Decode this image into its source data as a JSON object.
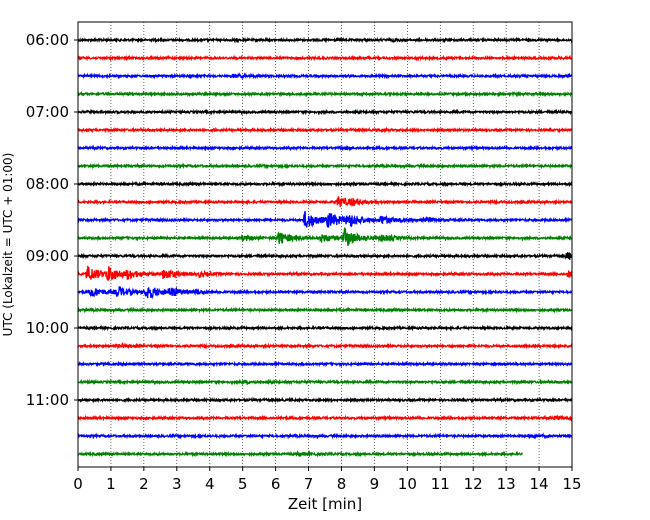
{
  "chart_data": {
    "type": "line",
    "title": "",
    "xlabel": "Zeit  [min]",
    "ylabel": "UTC (Lokalzeit = UTC + 01:00)",
    "xlim": [
      0,
      15
    ],
    "x_ticks": [
      "0",
      "1",
      "2",
      "3",
      "4",
      "5",
      "6",
      "7",
      "8",
      "9",
      "10",
      "11",
      "12",
      "13",
      "14",
      "15"
    ],
    "y_ticks": [
      "06:00",
      "07:00",
      "08:00",
      "09:00",
      "10:00",
      "11:00"
    ],
    "grid": "vertical dotted",
    "colors": [
      "#000000",
      "#ff0000",
      "#0000ff",
      "#008000"
    ],
    "trace_interval_min": 15,
    "traces": [
      {
        "start": "06:00",
        "color": "#000000",
        "events": [
          {
            "t": 9.6,
            "amp": 1.0
          }
        ]
      },
      {
        "start": "06:15",
        "color": "#ff0000",
        "events": [
          {
            "t": 14.8,
            "amp": 1.0
          }
        ]
      },
      {
        "start": "06:30",
        "color": "#0000ff",
        "events": [
          {
            "t": 4.7,
            "amp": 1.3
          }
        ]
      },
      {
        "start": "06:45",
        "color": "#008000",
        "events": []
      },
      {
        "start": "07:00",
        "color": "#000000",
        "events": []
      },
      {
        "start": "07:15",
        "color": "#ff0000",
        "events": [
          {
            "t": 9.1,
            "amp": 0.6
          }
        ]
      },
      {
        "start": "07:30",
        "color": "#0000ff",
        "events": [
          {
            "t": 8.0,
            "amp": 0.6
          }
        ]
      },
      {
        "start": "07:45",
        "color": "#008000",
        "events": []
      },
      {
        "start": "08:00",
        "color": "#000000",
        "events": []
      },
      {
        "start": "08:15",
        "color": "#ff0000",
        "events": [
          {
            "t": 7.9,
            "amp": 5.0
          },
          {
            "t": 8.3,
            "amp": 2.2
          }
        ]
      },
      {
        "start": "08:30",
        "color": "#0000ff",
        "events": [
          {
            "t": 6.9,
            "amp": 9.0
          },
          {
            "t": 7.6,
            "amp": 7.0
          },
          {
            "t": 8.2,
            "amp": 6.0
          },
          {
            "t": 9.2,
            "amp": 4.0
          },
          {
            "t": 10.5,
            "amp": 2.0
          }
        ]
      },
      {
        "start": "08:45",
        "color": "#008000",
        "events": [
          {
            "t": 5.0,
            "amp": 2.0
          },
          {
            "t": 6.1,
            "amp": 6.0
          },
          {
            "t": 7.4,
            "amp": 4.0
          },
          {
            "t": 8.1,
            "amp": 9.0
          },
          {
            "t": 9.2,
            "amp": 3.0
          }
        ]
      },
      {
        "start": "09:00",
        "color": "#000000",
        "events": [
          {
            "t": 14.85,
            "amp": 3.0
          }
        ]
      },
      {
        "start": "09:15",
        "color": "#ff0000",
        "events": [
          {
            "t": 0.3,
            "amp": 7.5
          },
          {
            "t": 0.9,
            "amp": 7.0
          },
          {
            "t": 1.5,
            "amp": 3.5
          },
          {
            "t": 2.6,
            "amp": 5.0
          },
          {
            "t": 3.7,
            "amp": 2.0
          },
          {
            "t": 14.9,
            "amp": 3.0
          }
        ]
      },
      {
        "start": "09:30",
        "color": "#0000ff",
        "events": [
          {
            "t": 0.4,
            "amp": 5.0
          },
          {
            "t": 1.2,
            "amp": 5.0
          },
          {
            "t": 2.1,
            "amp": 6.5
          },
          {
            "t": 2.8,
            "amp": 4.0
          },
          {
            "t": 3.6,
            "amp": 1.5
          }
        ]
      },
      {
        "start": "09:45",
        "color": "#008000",
        "events": []
      },
      {
        "start": "10:00",
        "color": "#000000",
        "events": []
      },
      {
        "start": "10:15",
        "color": "#ff0000",
        "events": [
          {
            "t": 1.2,
            "amp": 1.0
          }
        ]
      },
      {
        "start": "10:30",
        "color": "#0000ff",
        "events": []
      },
      {
        "start": "10:45",
        "color": "#008000",
        "events": [
          {
            "t": 5.0,
            "amp": 1.0
          }
        ]
      },
      {
        "start": "11:00",
        "color": "#000000",
        "events": []
      },
      {
        "start": "11:15",
        "color": "#ff0000",
        "events": [
          {
            "t": 14.5,
            "amp": 1.6
          }
        ]
      },
      {
        "start": "11:30",
        "color": "#0000ff",
        "events": [
          {
            "t": 13.7,
            "amp": 1.2
          }
        ]
      },
      {
        "start": "11:45",
        "color": "#008000",
        "end_min": 13.5,
        "events": [
          {
            "t": 6.7,
            "amp": 1.6
          }
        ]
      }
    ]
  }
}
